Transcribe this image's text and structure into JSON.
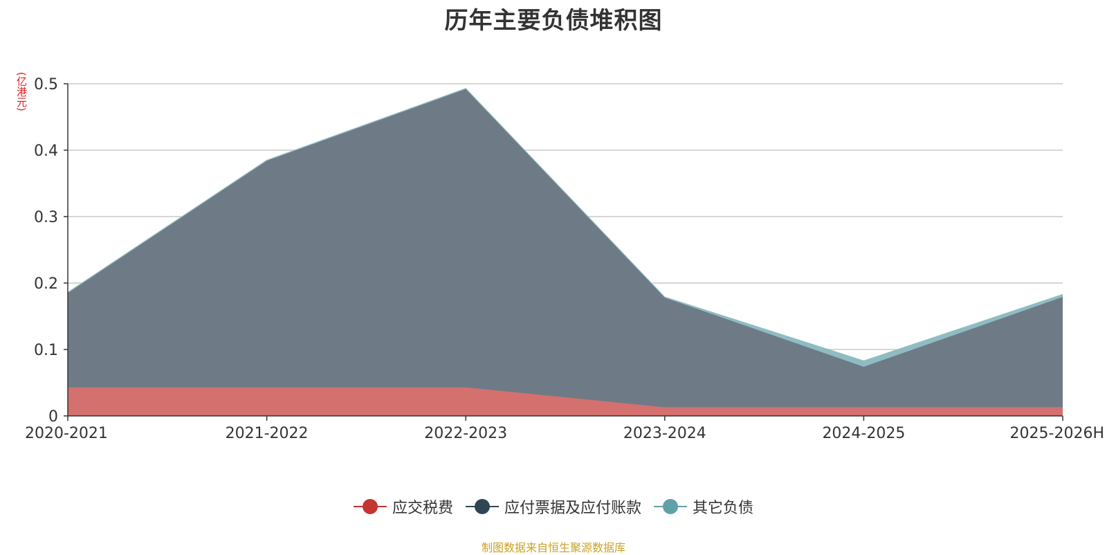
{
  "chart_data": {
    "type": "area",
    "stacked": true,
    "title": "历年主要负债堆积图",
    "unit_label": "(亿港元)",
    "categories": [
      "2020-2021",
      "2021-2022",
      "2022-2023",
      "2023-2024",
      "2024-2025",
      "2025-2026H"
    ],
    "ylim": [
      0,
      0.5
    ],
    "yticks": [
      0,
      0.1,
      0.2,
      0.3,
      0.4,
      0.5
    ],
    "ytick_labels": [
      "0",
      "0.1",
      "0.2",
      "0.3",
      "0.4",
      "0.5"
    ],
    "grid": true,
    "legend_position": "bottom",
    "series": [
      {
        "name": "应交税费",
        "values": [
          0.043,
          0.043,
          0.043,
          0.013,
          0.013,
          0.013
        ],
        "color": "#c23531"
      },
      {
        "name": "应付票据及应付账款",
        "values": [
          0.142,
          0.341,
          0.449,
          0.165,
          0.061,
          0.166
        ],
        "color": "#2f4554"
      },
      {
        "name": "其它负债",
        "values": [
          0.001,
          0.001,
          0.001,
          0.001,
          0.009,
          0.004
        ],
        "color": "#61a0a8"
      }
    ],
    "source": "制图数据来自恒生聚源数据库"
  }
}
